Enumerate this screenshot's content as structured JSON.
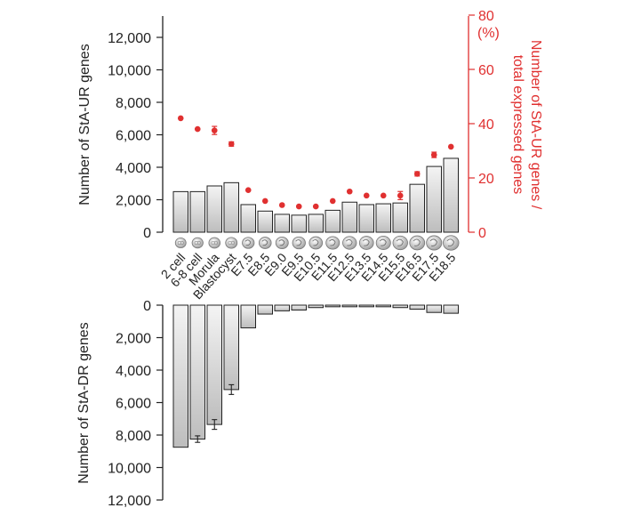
{
  "chart_data": [
    {
      "type": "bar",
      "panel": "top",
      "categories": [
        "2 cell",
        "6-8 cell",
        "Morula",
        "Blastocyst",
        "E7.5",
        "E8.5",
        "E9.0",
        "E9.5",
        "E10.5",
        "E11.5",
        "E12.5",
        "E13.5",
        "E14.5",
        "E15.5",
        "E16.5",
        "E17.5",
        "E18.5"
      ],
      "series": [
        {
          "type": "bar",
          "axis": "left",
          "values": [
            2500,
            2500,
            2850,
            3050,
            1700,
            1300,
            1100,
            1050,
            1100,
            1350,
            1850,
            1700,
            1750,
            1800,
            2950,
            4050,
            4550
          ]
        },
        {
          "type": "scatter",
          "axis": "right",
          "color": "#e03030",
          "values": [
            42,
            38,
            37.5,
            32.5,
            15.5,
            11.5,
            10,
            9.5,
            9.5,
            11.5,
            15,
            13.5,
            13.5,
            13.5,
            21.5,
            28.5,
            31.5
          ],
          "errors": [
            0,
            0,
            1.5,
            0.8,
            0,
            0,
            0,
            0,
            0,
            0,
            0,
            0,
            0,
            1.5,
            0.8,
            1.0,
            0
          ]
        }
      ],
      "ylabel": "Number of StA-UR genes",
      "ylim": [
        0,
        12000
      ],
      "yticks": [
        "0",
        "2,000",
        "4,000",
        "6,000",
        "8,000",
        "10,000",
        "12,000"
      ],
      "y2label": [
        "Number of StA-UR genes /",
        "total expressed genes"
      ],
      "y2unit": "(%)",
      "y2lim": [
        0,
        80
      ],
      "y2ticks": [
        "0",
        "20",
        "40",
        "60",
        "80"
      ]
    },
    {
      "type": "bar",
      "panel": "bottom",
      "orientation": "downward",
      "categories": [
        "2 cell",
        "6-8 cell",
        "Morula",
        "Blastocyst",
        "E7.5",
        "E8.5",
        "E9.0",
        "E9.5",
        "E10.5",
        "E11.5",
        "E12.5",
        "E13.5",
        "E14.5",
        "E15.5",
        "E16.5",
        "E17.5",
        "E18.5"
      ],
      "values": [
        8750,
        8250,
        7350,
        5200,
        1400,
        550,
        350,
        300,
        150,
        100,
        100,
        100,
        100,
        150,
        250,
        450,
        500
      ],
      "errors": [
        0,
        200,
        300,
        300,
        0,
        0,
        0,
        0,
        0,
        0,
        0,
        0,
        0,
        0,
        0,
        0,
        0
      ],
      "ylabel": "Number of StA-DR genes",
      "ylim": [
        0,
        12000
      ],
      "yticks": [
        "0",
        "2,000",
        "4,000",
        "6,000",
        "8,000",
        "10,000",
        "12,000"
      ]
    }
  ],
  "colors": {
    "bar_fill_light": "#f4f4f4",
    "bar_fill_dark": "#bdbdbd",
    "axis": "#222222",
    "red_series": "#e03030"
  },
  "icons": [
    "embryo-stage-icon"
  ]
}
